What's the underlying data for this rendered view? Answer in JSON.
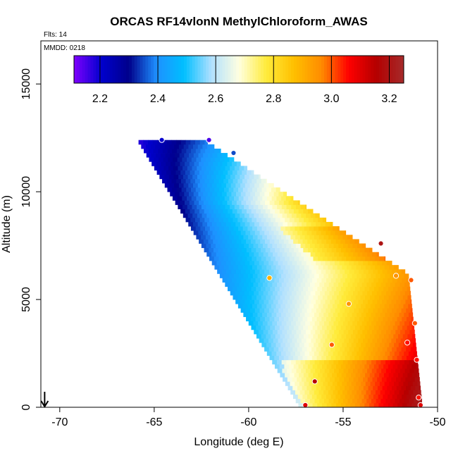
{
  "chart_data": {
    "type": "heatmap",
    "title": "ORCAS RF14vlonN MethylChloroform_AWAS",
    "xlabel": "Longitude (deg E)",
    "ylabel": "Altitude (m)",
    "xlim": [
      -71,
      -50
    ],
    "ylim": [
      0,
      17000
    ],
    "xticks": [
      -70,
      -65,
      -60,
      -55,
      -50
    ],
    "yticks": [
      0,
      5000,
      10000,
      15000
    ],
    "annotations": {
      "flights": "Flts: 14",
      "mmdd": "MMDD: 0218"
    },
    "colorbar": {
      "range": [
        2.11,
        3.25
      ],
      "ticks": [
        2.2,
        2.4,
        2.6,
        2.8,
        3.0,
        3.2
      ],
      "palette": [
        "#7f00ff",
        "#0000cd",
        "#00008b",
        "#1e90ff",
        "#00bfff",
        "#b0e0ff",
        "#ffffe0",
        "#ffeb3b",
        "#ffc000",
        "#ff8c00",
        "#ff0000",
        "#b40000",
        "#a52a2a"
      ]
    },
    "marker": {
      "longitude": -70.8,
      "label": "flight-start-arrow"
    },
    "samples": [
      {
        "lon": -64.6,
        "alt": 12400,
        "value": 2.2
      },
      {
        "lon": -62.1,
        "alt": 12400,
        "value": 2.15
      },
      {
        "lon": -60.8,
        "alt": 11800,
        "value": 2.35
      },
      {
        "lon": -53.0,
        "alt": 7600,
        "value": 3.2
      },
      {
        "lon": -58.9,
        "alt": 6000,
        "value": 2.9
      },
      {
        "lon": -52.2,
        "alt": 6100,
        "value": 2.95
      },
      {
        "lon": -51.4,
        "alt": 5900,
        "value": 3.0
      },
      {
        "lon": -54.7,
        "alt": 4800,
        "value": 2.95
      },
      {
        "lon": -51.2,
        "alt": 3900,
        "value": 3.0
      },
      {
        "lon": -51.6,
        "alt": 3000,
        "value": 3.05
      },
      {
        "lon": -55.6,
        "alt": 2900,
        "value": 3.0
      },
      {
        "lon": -51.1,
        "alt": 2200,
        "value": 3.05
      },
      {
        "lon": -56.5,
        "alt": 1200,
        "value": 3.15
      },
      {
        "lon": -51.0,
        "alt": 450,
        "value": 3.05
      },
      {
        "lon": -57.0,
        "alt": 100,
        "value": 3.1
      },
      {
        "lon": -50.9,
        "alt": 100,
        "value": 3.1
      }
    ]
  }
}
